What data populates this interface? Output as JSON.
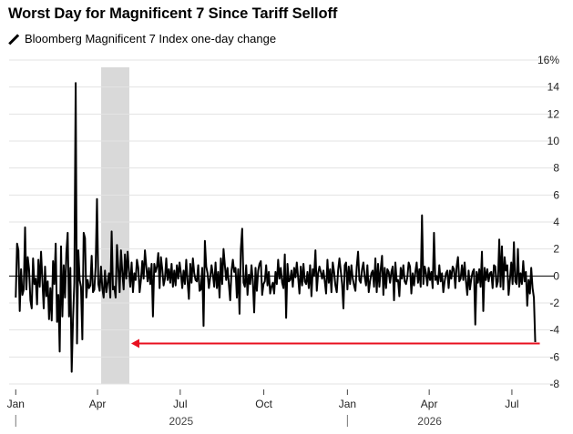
{
  "title": "Worst Day for Magnificent 7 Since Tariff Selloff",
  "chart_data": {
    "type": "line",
    "title": "Worst Day for Magnificent 7 Since Tariff Selloff",
    "series": [
      {
        "name": "Bloomberg Magnificent 7 Index one-day change",
        "values": [
          -1.6,
          2.4,
          1.9,
          -2.6,
          0.5,
          -1.4,
          -1.0,
          3.6,
          -1.0,
          1.4,
          0.5,
          -1.8,
          -2.4,
          1.3,
          -0.6,
          -0.2,
          -2.1,
          1.2,
          -0.8,
          1.8,
          -0.3,
          -2.4,
          0.7,
          -1.5,
          -0.4,
          -3.2,
          -0.9,
          -3.3,
          1.1,
          -0.6,
          2.4,
          -3.4,
          -1.4,
          -5.6,
          2.2,
          -3.0,
          0.8,
          -1.6,
          1.7,
          3.2,
          -3.0,
          0.6,
          -7.1,
          -3.2,
          -0.5,
          14.3,
          -5.0,
          1.9,
          -0.3,
          -0.8,
          -4.7,
          3.2,
          2.8,
          -1.6,
          -0.3,
          -0.9,
          -0.7,
          1.5,
          -1.2,
          -1.0,
          0.7,
          5.7,
          -0.6,
          -1.1,
          0.7,
          -0.9,
          -1.6,
          0.4,
          -1.2,
          -0.5,
          0.2,
          -1.6,
          3.3,
          -1.0,
          -0.8,
          -1.6,
          2.3,
          0.6,
          -1.2,
          1.9,
          0.3,
          -1.0,
          1.6,
          -0.2,
          1.8,
          0.4,
          -0.8,
          1.0,
          -1.2,
          0.2,
          -0.3,
          1.2,
          0.6,
          -1.2,
          -0.3,
          1.1,
          -0.2,
          1.9,
          0.7,
          -0.4,
          0.6,
          -0.6,
          0.9,
          -3.0,
          0.9,
          0.3,
          0.7,
          1.7,
          -0.9,
          1.4,
          0.5,
          -0.7,
          -0.2,
          1.3,
          -0.3,
          0.5,
          -0.5,
          0.9,
          -0.8,
          0.4,
          -0.7,
          0.8,
          -0.2,
          1.0,
          0.2,
          -0.9,
          0.4,
          -0.6,
          1.2,
          -0.4,
          -1.7,
          0.9,
          -0.5,
          1.3,
          0.2,
          -0.3,
          -0.4,
          0.8,
          -1.1,
          -1.0,
          0.6,
          -3.7,
          2.6,
          0.7,
          0.2,
          -0.9,
          -0.1,
          0.8,
          0.1,
          -0.8,
          1.0,
          -0.9,
          0.3,
          -1.6,
          1.3,
          -0.6,
          2.0,
          0.8,
          -0.3,
          0.6,
          -0.6,
          -1.8,
          0.4,
          1.2,
          0.3,
          0.6,
          -1.6,
          0.5,
          -2.8,
          2.0,
          3.5,
          -0.5,
          -0.8,
          0.8,
          -1.4,
          0.1,
          -0.6,
          0.8,
          -0.4,
          -2.7,
          0.6,
          -1.1,
          0.4,
          0.9,
          1.1,
          -1.4,
          -0.6,
          -0.4,
          0.8,
          -0.7,
          0.3,
          -1.3,
          -0.8,
          -0.5,
          -1.3,
          0.3,
          -0.6,
          1.2,
          -0.2,
          0.6,
          -0.5,
          -0.9,
          1.6,
          -3.1,
          0.9,
          -0.4,
          -0.3,
          0.4,
          -0.8,
          0.6,
          -0.1,
          1.0,
          -0.1,
          -1.3,
          0.7,
          -0.7,
          0.9,
          -0.4,
          -0.6,
          0.3,
          -0.9,
          0.8,
          -1.5,
          0.5,
          0.0,
          1.9,
          -1.1,
          0.2,
          0.7,
          0.3,
          -0.2,
          0.4,
          -0.4,
          -1.3,
          1.2,
          -0.5,
          0.5,
          -1.2,
          1.0,
          0.3,
          -0.7,
          -1.2,
          0.4,
          1.3,
          0.4,
          -0.6,
          -2.4,
          0.8,
          1.0,
          -1.0,
          0.7,
          -0.6,
          0.8,
          -0.2,
          -0.7,
          -1.1,
          0.7,
          1.8,
          -0.3,
          -0.5,
          0.5,
          1.0,
          -0.1,
          -0.7,
          0.8,
          -1.2,
          -0.4,
          0.2,
          0.4,
          -0.8,
          1.3,
          -1.2,
          0.9,
          -0.8,
          0.5,
          1.5,
          -1.4,
          0.6,
          -0.9,
          0.5,
          0.3,
          -0.5,
          0.3,
          0.7,
          -1.8,
          1.0,
          -0.4,
          -0.3,
          -1.5,
          0.6,
          -0.2,
          0.8,
          -0.4,
          -0.6,
          -0.1,
          1.0,
          0.7,
          -1.3,
          0.2,
          -0.7,
          0.3,
          1.0,
          -0.5,
          0.5,
          -0.8,
          4.5,
          -0.6,
          0.7,
          0.2,
          -0.7,
          0.6,
          -0.3,
          0.3,
          -0.9,
          3.2,
          -0.3,
          0.0,
          -0.6,
          0.8,
          -0.4,
          0.2,
          -1.2,
          -0.4,
          0.2,
          0.4,
          -0.9,
          0.4,
          -0.2,
          0.7,
          0.5,
          -0.9,
          0.7,
          1.4,
          -0.4,
          -0.2,
          0.8,
          -0.3,
          1.0,
          -0.4,
          -1.4,
          0.4,
          -1.0,
          -0.2,
          0.3,
          0.5,
          -3.6,
          0.3,
          -0.5,
          0.5,
          -0.8,
          1.8,
          -2.6,
          0.6,
          -0.3,
          0.5,
          -0.4,
          0.2,
          0.3,
          -0.9,
          0.8,
          0.7,
          -0.8,
          -0.4,
          2.7,
          -0.8,
          2.2,
          -1.0,
          1.4,
          0.4,
          0.8,
          -1.4,
          -0.3,
          1.0,
          -0.6,
          2.5,
          -0.4,
          -0.6,
          2.0,
          -0.8,
          0.2,
          -0.6,
          1.1,
          -0.4,
          0.3,
          -2.2,
          -0.3,
          -1.3,
          0.6,
          -0.9,
          -1.6,
          -4.9
        ]
      }
    ],
    "x_axis": {
      "ticks": [
        {
          "label": "Jan",
          "pos": 0.0
        },
        {
          "label": "Apr",
          "pos": 0.2466
        },
        {
          "label": "Jul",
          "pos": 0.4959
        },
        {
          "label": "Oct",
          "pos": 0.7479
        },
        {
          "label": "Jan",
          "pos": 1.0
        },
        {
          "label": "Apr",
          "pos": 1.2466
        },
        {
          "label": "Jul",
          "pos": 1.4959
        }
      ],
      "years": [
        {
          "label": "2025",
          "pos": 0.4986
        },
        {
          "label": "2026",
          "pos": 1.2479
        }
      ],
      "year_dividers": [
        0.0,
        1.0
      ],
      "range": [
        -0.02,
        1.595
      ]
    },
    "y_axis": {
      "ticks": [
        -8,
        -6,
        -4,
        -2,
        0,
        2,
        4,
        6,
        8,
        10,
        12,
        14,
        16
      ],
      "tick_labels": [
        "-8",
        "-6",
        "-4",
        "-2",
        "0",
        "2",
        "4",
        "6",
        "8",
        "10",
        "12",
        "14",
        "16%"
      ],
      "ylim": [
        -8,
        16
      ],
      "position": "right"
    },
    "shaded_region": {
      "start": 0.2575,
      "end": 0.3425,
      "color": "#d9d9d9"
    },
    "annotation_arrow": {
      "from_x": 1.58,
      "to_x": 0.3425,
      "y": -5.0,
      "color": "#e8101f"
    },
    "colors": {
      "line": "#000000",
      "zero_line": "#000000",
      "grid": "#e3e3e3"
    },
    "grid": true,
    "legend_placement": "top-left"
  }
}
